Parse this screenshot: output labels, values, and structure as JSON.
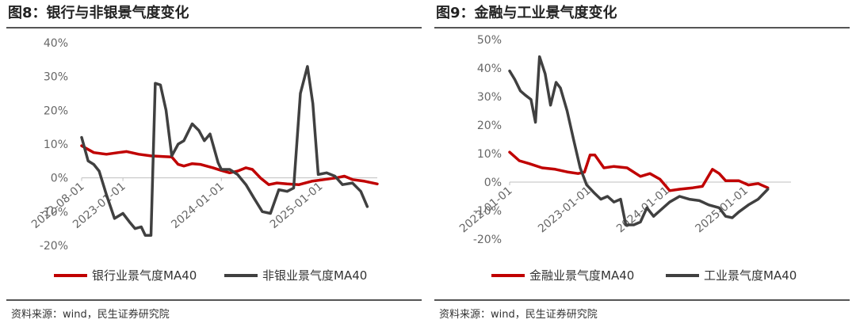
{
  "charts": [
    {
      "title": "图8：银行与非银景气度变化",
      "source": "资料来源：wind，民生证券研究院",
      "chart_data": {
        "type": "line",
        "title": "图8：银行与非银景气度变化",
        "x_start": "2022-08-01",
        "x_end": "2025-08-01",
        "ylim": [
          -20,
          40
        ],
        "y_ticks": [
          40,
          30,
          20,
          10,
          0,
          -10,
          -20
        ],
        "y_tick_labels": [
          "40%",
          "30%",
          "20%",
          "10%",
          "0%",
          "-10%",
          "-20%"
        ],
        "x_ticks": [
          "2022-08-01",
          "2023-01-01",
          "2024-01-01",
          "2025-01-01"
        ],
        "x_tick_labels": [
          "2022-08-01",
          "2023-01-01",
          "2024-01-01",
          "2025-01-01"
        ],
        "grid": false,
        "legend_position": "bottom",
        "series": [
          {
            "name": "银行业景气度MA40",
            "color": "#c00000",
            "points": [
              [
                "2022-08-01",
                9.5
              ],
              [
                "2022-09-15",
                7.5
              ],
              [
                "2022-11-01",
                7.0
              ],
              [
                "2022-12-15",
                7.5
              ],
              [
                "2023-01-15",
                7.8
              ],
              [
                "2023-03-01",
                7.0
              ],
              [
                "2023-04-15",
                6.5
              ],
              [
                "2023-06-01",
                6.3
              ],
              [
                "2023-07-01",
                6.2
              ],
              [
                "2023-07-25",
                4.0
              ],
              [
                "2023-08-15",
                3.5
              ],
              [
                "2023-09-15",
                4.2
              ],
              [
                "2023-10-15",
                4.0
              ],
              [
                "2023-12-01",
                3.0
              ],
              [
                "2024-01-01",
                2.2
              ],
              [
                "2024-02-01",
                1.5
              ],
              [
                "2024-03-01",
                2.0
              ],
              [
                "2024-04-01",
                3.0
              ],
              [
                "2024-04-25",
                2.5
              ],
              [
                "2024-05-25",
                0.0
              ],
              [
                "2024-06-25",
                -2.0
              ],
              [
                "2024-07-25",
                -1.5
              ],
              [
                "2024-09-01",
                -1.8
              ],
              [
                "2024-10-15",
                -2.0
              ],
              [
                "2024-12-01",
                -1.0
              ],
              [
                "2025-01-15",
                -0.5
              ],
              [
                "2025-03-01",
                0.0
              ],
              [
                "2025-04-01",
                0.5
              ],
              [
                "2025-05-01",
                -0.5
              ],
              [
                "2025-06-15",
                -1.0
              ],
              [
                "2025-08-01",
                -1.8
              ]
            ]
          },
          {
            "name": "非银业景气度MA40",
            "color": "#404040",
            "points": [
              [
                "2022-08-01",
                12.0
              ],
              [
                "2022-08-25",
                5.0
              ],
              [
                "2022-09-15",
                4.0
              ],
              [
                "2022-10-05",
                2.0
              ],
              [
                "2022-11-01",
                -5.0
              ],
              [
                "2022-12-01",
                -12.0
              ],
              [
                "2023-01-01",
                -10.5
              ],
              [
                "2023-01-25",
                -13.0
              ],
              [
                "2023-02-15",
                -15.0
              ],
              [
                "2023-03-10",
                -14.5
              ],
              [
                "2023-03-25",
                -17.0
              ],
              [
                "2023-04-15",
                -17.0
              ],
              [
                "2023-05-01",
                28.0
              ],
              [
                "2023-05-20",
                27.5
              ],
              [
                "2023-06-10",
                20.0
              ],
              [
                "2023-07-01",
                6.5
              ],
              [
                "2023-07-25",
                10.0
              ],
              [
                "2023-08-15",
                11.0
              ],
              [
                "2023-09-15",
                16.0
              ],
              [
                "2023-10-10",
                14.0
              ],
              [
                "2023-10-30",
                11.0
              ],
              [
                "2023-11-20",
                13.0
              ],
              [
                "2023-12-20",
                4.5
              ],
              [
                "2024-01-01",
                2.5
              ],
              [
                "2024-02-01",
                2.5
              ],
              [
                "2024-03-01",
                1.0
              ],
              [
                "2024-04-01",
                -2.0
              ],
              [
                "2024-05-01",
                -6.0
              ],
              [
                "2024-06-01",
                -10.0
              ],
              [
                "2024-07-01",
                -10.5
              ],
              [
                "2024-08-01",
                -3.5
              ],
              [
                "2024-09-01",
                -4.0
              ],
              [
                "2024-09-25",
                -3.0
              ],
              [
                "2024-10-20",
                25.0
              ],
              [
                "2024-11-15",
                33.0
              ],
              [
                "2024-12-05",
                22.0
              ],
              [
                "2024-12-25",
                1.0
              ],
              [
                "2025-01-25",
                1.5
              ],
              [
                "2025-02-25",
                0.5
              ],
              [
                "2025-03-25",
                -2.0
              ],
              [
                "2025-05-01",
                -1.5
              ],
              [
                "2025-06-01",
                -4.0
              ],
              [
                "2025-06-25",
                -8.5
              ]
            ]
          }
        ]
      }
    },
    {
      "title": "图9：金融与工业景气度变化",
      "source": "资料来源：wind，民生证券研究院",
      "chart_data": {
        "type": "line",
        "title": "图9：金融与工业景气度变化",
        "x_start": "2022-01-01",
        "x_end": "2025-08-01",
        "ylim": [
          -20,
          50
        ],
        "y_ticks": [
          50,
          40,
          30,
          20,
          10,
          0,
          -10,
          -20
        ],
        "y_tick_labels": [
          "50%",
          "40%",
          "30%",
          "20%",
          "10%",
          "0%",
          "-10%",
          "-20%"
        ],
        "x_ticks": [
          "2022-01-01",
          "2023-01-01",
          "2024-01-01",
          "2025-01-01"
        ],
        "x_tick_labels": [
          "2022-01-01",
          "2023-01-01",
          "2024-01-01",
          "2025-01-01"
        ],
        "grid": false,
        "legend_position": "bottom",
        "series": [
          {
            "name": "金融业景气度MA40",
            "color": "#c00000",
            "points": [
              [
                "2022-01-01",
                10.5
              ],
              [
                "2022-02-15",
                7.5
              ],
              [
                "2022-04-01",
                6.5
              ],
              [
                "2022-06-01",
                5.0
              ],
              [
                "2022-08-01",
                4.5
              ],
              [
                "2022-10-01",
                3.5
              ],
              [
                "2022-11-15",
                3.0
              ],
              [
                "2022-12-15",
                3.5
              ],
              [
                "2023-01-10",
                9.5
              ],
              [
                "2023-02-01",
                9.5
              ],
              [
                "2023-03-15",
                5.0
              ],
              [
                "2023-05-01",
                5.5
              ],
              [
                "2023-07-01",
                5.0
              ],
              [
                "2023-09-01",
                2.0
              ],
              [
                "2023-10-15",
                3.0
              ],
              [
                "2023-12-01",
                1.0
              ],
              [
                "2024-01-15",
                -3.0
              ],
              [
                "2024-03-01",
                -2.5
              ],
              [
                "2024-05-01",
                -2.0
              ],
              [
                "2024-06-15",
                -1.5
              ],
              [
                "2024-08-01",
                4.5
              ],
              [
                "2024-09-01",
                3.0
              ],
              [
                "2024-10-01",
                0.5
              ],
              [
                "2024-12-01",
                0.5
              ],
              [
                "2025-01-15",
                -1.0
              ],
              [
                "2025-03-01",
                -0.5
              ],
              [
                "2025-04-15",
                -2.0
              ]
            ]
          },
          {
            "name": "工业景气度MA40",
            "color": "#404040",
            "points": [
              [
                "2022-01-01",
                39.0
              ],
              [
                "2022-01-25",
                36.0
              ],
              [
                "2022-02-20",
                32.0
              ],
              [
                "2022-03-15",
                30.5
              ],
              [
                "2022-04-10",
                29.0
              ],
              [
                "2022-05-01",
                21.0
              ],
              [
                "2022-05-20",
                44.0
              ],
              [
                "2022-06-15",
                38.0
              ],
              [
                "2022-07-10",
                27.0
              ],
              [
                "2022-08-05",
                35.0
              ],
              [
                "2022-08-25",
                33.0
              ],
              [
                "2022-09-25",
                25.0
              ],
              [
                "2022-10-25",
                15.0
              ],
              [
                "2022-11-25",
                5.0
              ],
              [
                "2022-12-25",
                -1.0
              ],
              [
                "2023-02-01",
                -4.0
              ],
              [
                "2023-03-01",
                -6.0
              ],
              [
                "2023-04-01",
                -5.0
              ],
              [
                "2023-05-01",
                -7.0
              ],
              [
                "2023-06-01",
                -6.0
              ],
              [
                "2023-06-25",
                -15.0
              ],
              [
                "2023-08-01",
                -15.0
              ],
              [
                "2023-09-01",
                -14.0
              ],
              [
                "2023-10-01",
                -9.0
              ],
              [
                "2023-11-01",
                -12.0
              ],
              [
                "2023-12-01",
                -10.0
              ],
              [
                "2024-01-15",
                -7.0
              ],
              [
                "2024-03-01",
                -5.0
              ],
              [
                "2024-04-15",
                -6.0
              ],
              [
                "2024-06-01",
                -6.5
              ],
              [
                "2024-07-15",
                -8.0
              ],
              [
                "2024-09-01",
                -9.0
              ],
              [
                "2024-10-01",
                -12.0
              ],
              [
                "2024-11-01",
                -12.5
              ],
              [
                "2024-12-01",
                -10.5
              ],
              [
                "2025-01-15",
                -8.0
              ],
              [
                "2025-03-01",
                -6.0
              ],
              [
                "2025-04-15",
                -2.5
              ]
            ]
          }
        ]
      }
    }
  ]
}
